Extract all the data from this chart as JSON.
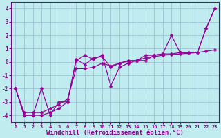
{
  "xlabel": "Windchill (Refroidissement éolien,°C)",
  "xlim": [
    -0.5,
    23.5
  ],
  "ylim": [
    -4.5,
    4.5
  ],
  "xticks": [
    0,
    1,
    2,
    3,
    4,
    5,
    6,
    7,
    8,
    9,
    10,
    11,
    12,
    13,
    14,
    15,
    16,
    17,
    18,
    19,
    20,
    21,
    22,
    23
  ],
  "yticks": [
    -4,
    -3,
    -2,
    -1,
    0,
    1,
    2,
    3,
    4
  ],
  "bg_color": "#c0ecf0",
  "line_color": "#990099",
  "grid_color": "#99bbcc",
  "series1_x": [
    0,
    1,
    2,
    3,
    4,
    5,
    6,
    7,
    8,
    9,
    10,
    11,
    12,
    13,
    14,
    15,
    16,
    17,
    18,
    19,
    20,
    21,
    22,
    23
  ],
  "series1_y": [
    -2,
    -4,
    -4,
    -2,
    -4,
    -3,
    -3,
    0.1,
    0.5,
    0.2,
    0.5,
    -1.8,
    -0.4,
    -0.1,
    0.1,
    0.1,
    0.5,
    0.6,
    2.0,
    0.7,
    0.7,
    0.7,
    2.5,
    4.0
  ],
  "series2_x": [
    0,
    1,
    2,
    3,
    4,
    5,
    6,
    7,
    8,
    9,
    10,
    11,
    12,
    13,
    14,
    15,
    16,
    17,
    18,
    19,
    20,
    21,
    22,
    23
  ],
  "series2_y": [
    -2,
    -4,
    -4,
    -4,
    -3.8,
    -3.5,
    -3.0,
    0.2,
    -0.2,
    0.3,
    0.4,
    -0.4,
    -0.1,
    0.1,
    0.1,
    0.5,
    0.5,
    0.6,
    0.6,
    0.7,
    0.7,
    0.7,
    2.5,
    4.0
  ],
  "series3_x": [
    0,
    1,
    2,
    3,
    4,
    5,
    6,
    7,
    8,
    9,
    10,
    11,
    12,
    13,
    14,
    15,
    16,
    17,
    18,
    19,
    20,
    21,
    22,
    23
  ],
  "series3_y": [
    -2,
    -3.8,
    -3.8,
    -3.8,
    -3.5,
    -3.2,
    -2.8,
    -0.5,
    -0.5,
    -0.4,
    -0.1,
    -0.3,
    -0.1,
    0.05,
    0.1,
    0.3,
    0.4,
    0.5,
    0.55,
    0.6,
    0.65,
    0.7,
    0.8,
    0.9
  ],
  "marker": "D",
  "markersize": 2.5,
  "linewidth": 0.9,
  "tick_fontsize": 5.0,
  "xlabel_fontsize": 6.5,
  "font_color": "#880088"
}
